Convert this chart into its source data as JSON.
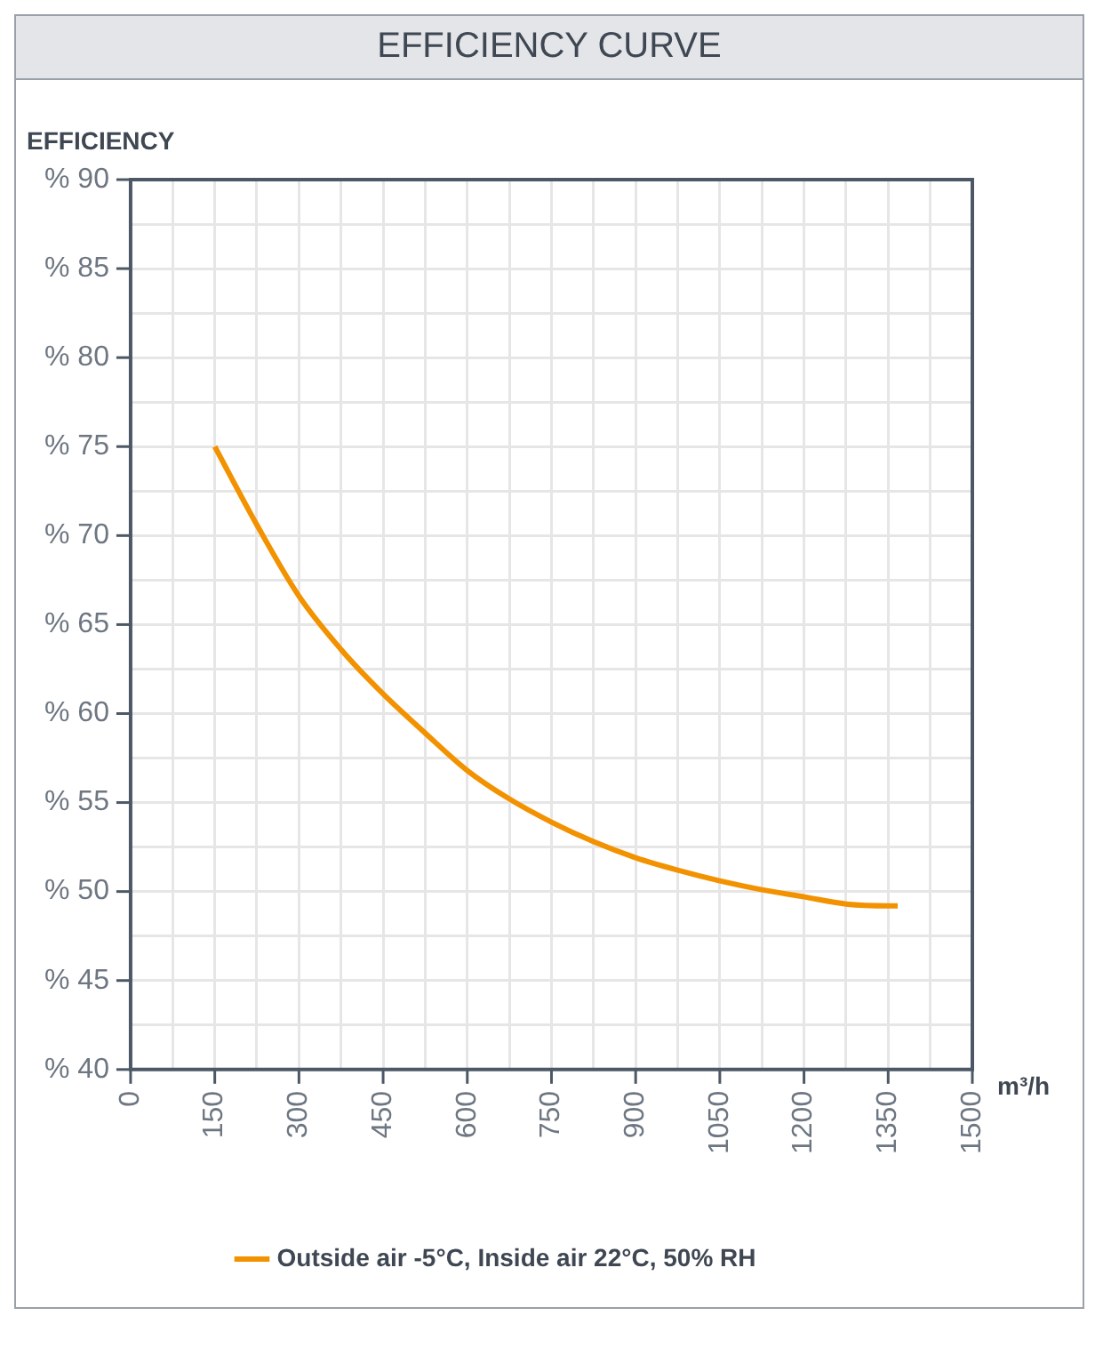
{
  "chart_data": {
    "type": "line",
    "title": "EFFICIENCY CURVE",
    "ylabel": "EFFICIENCY",
    "xlabel": "m³/h",
    "xlim": [
      0,
      1500
    ],
    "xticks": [
      0,
      {
        "value": 75,
        "label": null
      },
      150,
      {
        "value": 225,
        "label": null
      },
      300,
      {
        "value": 375,
        "label": null
      },
      450,
      {
        "value": 525,
        "label": null
      },
      600,
      {
        "value": 675,
        "label": null
      },
      750,
      {
        "value": 825,
        "label": null
      },
      900,
      {
        "value": 975,
        "label": null
      },
      1050,
      {
        "value": 1125,
        "label": null
      },
      1200,
      {
        "value": 1275,
        "label": null
      },
      1350,
      {
        "value": 1425,
        "label": null
      },
      1500
    ],
    "ylim": [
      40,
      90
    ],
    "yticks": [
      {
        "value": 40,
        "label": "% 40"
      },
      {
        "value": 42.5,
        "label": null
      },
      {
        "value": 45,
        "label": "% 45"
      },
      {
        "value": 47.5,
        "label": null
      },
      {
        "value": 50,
        "label": "% 50"
      },
      {
        "value": 52.5,
        "label": null
      },
      {
        "value": 55,
        "label": "% 55"
      },
      {
        "value": 57.5,
        "label": null
      },
      {
        "value": 60,
        "label": "% 60"
      },
      {
        "value": 62.5,
        "label": null
      },
      {
        "value": 65,
        "label": "% 65"
      },
      {
        "value": 67.5,
        "label": null
      },
      {
        "value": 70,
        "label": "% 70"
      },
      {
        "value": 72.5,
        "label": null
      },
      {
        "value": 75,
        "label": "% 75"
      },
      {
        "value": 77.5,
        "label": null
      },
      {
        "value": 80,
        "label": "% 80"
      },
      {
        "value": 82.5,
        "label": null
      },
      {
        "value": 85,
        "label": "% 85"
      },
      {
        "value": 87.5,
        "label": null
      },
      {
        "value": 90,
        "label": "% 90"
      }
    ],
    "grid": true,
    "legend": "bottom",
    "marker": "none",
    "line_style": "solid",
    "series": [
      {
        "name": "Outside air -5°C, Inside air 22°C, 50% RH",
        "color": "#f39200",
        "x": [
          150,
          225,
          300,
          375,
          450,
          525,
          600,
          675,
          750,
          825,
          900,
          975,
          1050,
          1125,
          1200,
          1275,
          1350,
          1367
        ],
        "values": [
          75,
          70.6,
          66.6,
          63.6,
          61.1,
          58.9,
          56.8,
          55.2,
          53.9,
          52.8,
          51.9,
          51.2,
          50.6,
          50.1,
          49.7,
          49.3,
          49.2,
          49.2
        ]
      }
    ]
  }
}
